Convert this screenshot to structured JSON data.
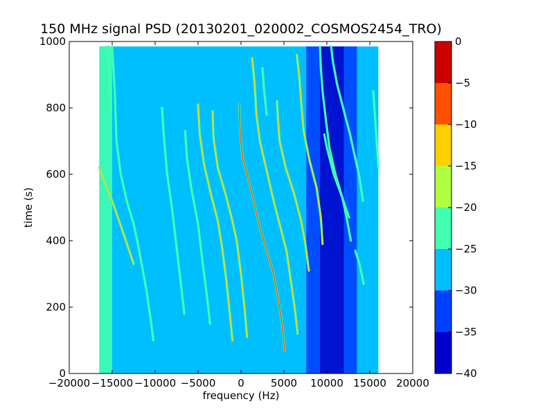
{
  "chart_data": {
    "type": "heatmap",
    "title": "150 MHz signal PSD (20130201_020002_COSMOS2454_TRO)",
    "xlabel": "frequency (Hz)",
    "ylabel": "time (s)",
    "xlim": [
      -20000,
      20000
    ],
    "ylim": [
      0,
      1000
    ],
    "x_ticks": [
      -20000,
      -15000,
      -10000,
      -5000,
      0,
      5000,
      10000,
      15000,
      20000
    ],
    "x_tick_labels": [
      "−20000",
      "−15000",
      "−10000",
      "−5000",
      "0",
      "5000",
      "10000",
      "15000",
      "20000"
    ],
    "y_ticks": [
      0,
      200,
      400,
      600,
      800,
      1000
    ],
    "y_tick_labels": [
      "0",
      "200",
      "400",
      "600",
      "800",
      "1000"
    ],
    "data_extent": {
      "x": [
        -16500,
        16000
      ],
      "y": [
        0,
        985
      ]
    },
    "background_level_db": -27.5,
    "colorbar": {
      "min": -40,
      "max": 0,
      "levels": [
        -40,
        -35,
        -30,
        -25,
        -20,
        -15,
        -10,
        -5,
        0
      ],
      "tick_labels": [
        "−40",
        "−35",
        "−30",
        "−25",
        "−20",
        "−15",
        "−10",
        "−5",
        "0"
      ],
      "colors": [
        "#0000cc",
        "#0040ff",
        "#00bfff",
        "#40ffb0",
        "#b0ff40",
        "#ffd000",
        "#ff5000",
        "#cc0000"
      ]
    },
    "features": [
      {
        "kind": "band",
        "x": [
          -16500,
          -15000
        ],
        "y": [
          0,
          985
        ],
        "level_db": -22.5
      },
      {
        "kind": "band",
        "x": [
          7600,
          9200
        ],
        "y": [
          0,
          985
        ],
        "level_db": -31
      },
      {
        "kind": "band",
        "x": [
          9200,
          12000
        ],
        "y": [
          0,
          985
        ],
        "level_db": -37
      },
      {
        "kind": "band",
        "x": [
          12000,
          13500
        ],
        "y": [
          0,
          985
        ],
        "level_db": -31
      },
      {
        "kind": "trace",
        "level_db": -12,
        "points": [
          [
            -16500,
            620
          ],
          [
            -15800,
            570
          ],
          [
            -15000,
            520
          ],
          [
            -14200,
            460
          ],
          [
            -13400,
            400
          ],
          [
            -12500,
            330
          ]
        ]
      },
      {
        "kind": "trace",
        "level_db": -22,
        "points": [
          [
            -15000,
            985
          ],
          [
            -14700,
            850
          ],
          [
            -14500,
            700
          ],
          [
            -14000,
            600
          ],
          [
            -13300,
            520
          ],
          [
            -12500,
            450
          ],
          [
            -12000,
            390
          ],
          [
            -11500,
            320
          ],
          [
            -11000,
            250
          ],
          [
            -10500,
            160
          ],
          [
            -10200,
            100
          ]
        ]
      },
      {
        "kind": "trace",
        "level_db": -22,
        "points": [
          [
            -15500,
            985
          ],
          [
            -15300,
            900
          ],
          [
            -15200,
            800
          ]
        ]
      },
      {
        "kind": "trace",
        "level_db": -22,
        "points": [
          [
            -9200,
            800
          ],
          [
            -9000,
            720
          ],
          [
            -8600,
            600
          ],
          [
            -8000,
            490
          ],
          [
            -7500,
            380
          ],
          [
            -7000,
            270
          ],
          [
            -6600,
            180
          ]
        ]
      },
      {
        "kind": "trace",
        "level_db": -22,
        "points": [
          [
            -6500,
            730
          ],
          [
            -6300,
            650
          ],
          [
            -5800,
            560
          ],
          [
            -5000,
            450
          ],
          [
            -4500,
            340
          ],
          [
            -4000,
            240
          ],
          [
            -3600,
            150
          ]
        ]
      },
      {
        "kind": "trace",
        "level_db": -15,
        "points": [
          [
            -5000,
            810
          ],
          [
            -4800,
            720
          ],
          [
            -4300,
            630
          ],
          [
            -3500,
            540
          ],
          [
            -2700,
            460
          ],
          [
            -2200,
            380
          ],
          [
            -1700,
            280
          ],
          [
            -1300,
            180
          ],
          [
            -1000,
            100
          ]
        ]
      },
      {
        "kind": "trace",
        "level_db": -15,
        "points": [
          [
            -3300,
            790
          ],
          [
            -3200,
            710
          ],
          [
            -2700,
            620
          ],
          [
            -1800,
            540
          ],
          [
            -1100,
            470
          ],
          [
            -500,
            400
          ],
          [
            0,
            300
          ],
          [
            400,
            200
          ],
          [
            700,
            110
          ]
        ]
      },
      {
        "kind": "trace",
        "level_db": -8,
        "points": [
          [
            -200,
            810
          ],
          [
            -100,
            720
          ],
          [
            200,
            650
          ],
          [
            1200,
            550
          ],
          [
            2200,
            440
          ],
          [
            3000,
            370
          ],
          [
            3800,
            300
          ],
          [
            4300,
            230
          ],
          [
            4800,
            150
          ],
          [
            5100,
            70
          ]
        ]
      },
      {
        "kind": "trace",
        "level_db": -15,
        "points": [
          [
            1300,
            950
          ],
          [
            1600,
            870
          ],
          [
            1800,
            780
          ],
          [
            2200,
            700
          ],
          [
            3000,
            610
          ],
          [
            3800,
            520
          ],
          [
            4600,
            440
          ],
          [
            5300,
            370
          ],
          [
            5800,
            280
          ],
          [
            6300,
            190
          ],
          [
            6600,
            120
          ]
        ]
      },
      {
        "kind": "trace",
        "level_db": -22,
        "points": [
          [
            2500,
            920
          ],
          [
            2700,
            850
          ],
          [
            3000,
            780
          ]
        ]
      },
      {
        "kind": "trace",
        "level_db": -15,
        "points": [
          [
            4200,
            820
          ],
          [
            4300,
            770
          ],
          [
            4500,
            700
          ],
          [
            5200,
            620
          ],
          [
            6200,
            540
          ],
          [
            7000,
            460
          ],
          [
            7500,
            390
          ],
          [
            7900,
            310
          ]
        ]
      },
      {
        "kind": "trace",
        "level_db": -15,
        "points": [
          [
            6500,
            960
          ],
          [
            6800,
            890
          ],
          [
            7000,
            820
          ],
          [
            7300,
            730
          ],
          [
            8000,
            640
          ],
          [
            8800,
            560
          ],
          [
            9300,
            470
          ],
          [
            9500,
            390
          ]
        ]
      },
      {
        "kind": "trace",
        "level_db": -22,
        "points": [
          [
            9200,
            985
          ],
          [
            9300,
            920
          ],
          [
            9500,
            850
          ],
          [
            9900,
            760
          ],
          [
            10300,
            680
          ],
          [
            11000,
            600
          ],
          [
            11800,
            530
          ],
          [
            12300,
            470
          ],
          [
            12800,
            400
          ]
        ]
      },
      {
        "kind": "trace",
        "level_db": -22,
        "points": [
          [
            10500,
            985
          ],
          [
            10700,
            940
          ],
          [
            11200,
            870
          ],
          [
            12000,
            790
          ],
          [
            12700,
            720
          ],
          [
            13300,
            650
          ],
          [
            13800,
            590
          ],
          [
            14200,
            520
          ]
        ]
      },
      {
        "kind": "trace",
        "level_db": -22,
        "points": [
          [
            9700,
            720
          ],
          [
            10000,
            680
          ],
          [
            10800,
            600
          ],
          [
            11800,
            530
          ],
          [
            12600,
            470
          ]
        ]
      },
      {
        "kind": "trace",
        "level_db": -22,
        "points": [
          [
            13300,
            370
          ],
          [
            13800,
            330
          ],
          [
            14300,
            270
          ]
        ]
      },
      {
        "kind": "trace",
        "level_db": -22,
        "points": [
          [
            15400,
            850
          ],
          [
            15600,
            780
          ],
          [
            15800,
            700
          ],
          [
            16000,
            620
          ]
        ]
      }
    ]
  }
}
